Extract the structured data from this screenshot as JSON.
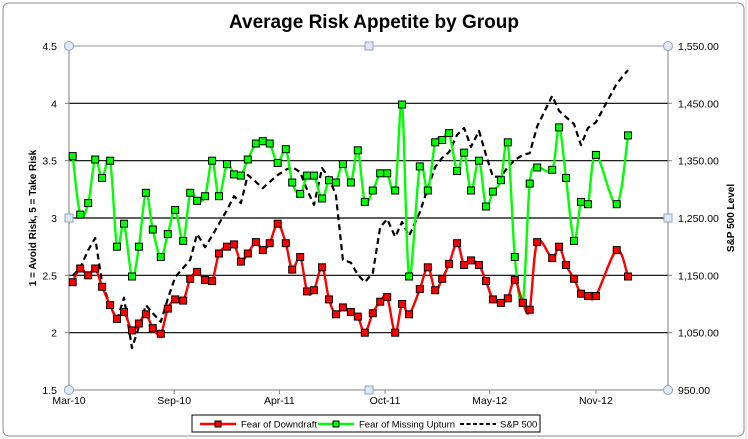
{
  "chart_data": {
    "type": "line",
    "title": "Average Risk Appetite by Group",
    "ylabel": "1 = Avoid Risk, 5 = Take Risk",
    "y2label": "S&P 500 Level",
    "ylim": [
      1.5,
      4.5
    ],
    "y2lim": [
      950,
      1550
    ],
    "xlim": [
      "2010-03-01",
      "2013-03-27"
    ],
    "y_ticks": [
      "1.5",
      "2",
      "2.5",
      "3",
      "3.5",
      "4",
      "4.5"
    ],
    "y_tick_values": [
      1.5,
      2,
      2.5,
      3,
      3.5,
      4,
      4.5
    ],
    "y2_ticks": [
      "950.00",
      "1,050.00",
      "1,150.00",
      "1,250.00",
      "1,350.00",
      "1,450.00",
      "1,550.00"
    ],
    "y2_tick_values": [
      950,
      1050,
      1150,
      1250,
      1350,
      1450,
      1550
    ],
    "x_ticks": [
      "Mar-10",
      "Sep-10",
      "Apr-11",
      "Oct-11",
      "May-12",
      "Nov-12"
    ],
    "x_tick_dates": [
      "2010-03-01",
      "2010-09-14",
      "2011-03-30",
      "2011-10-14",
      "2012-04-27",
      "2012-11-12"
    ],
    "grid": "horizontal major gridlines",
    "legend_position": "bottom",
    "x": [
      "2010-03-08",
      "2010-03-22",
      "2010-04-06",
      "2010-04-19",
      "2010-05-02",
      "2010-05-17",
      "2010-05-30",
      "2010-06-12",
      "2010-06-27",
      "2010-07-10",
      "2010-07-23",
      "2010-08-05",
      "2010-08-20",
      "2010-09-02",
      "2010-09-16",
      "2010-10-01",
      "2010-10-14",
      "2010-10-27",
      "2010-11-11",
      "2010-11-24",
      "2010-12-07",
      "2010-12-22",
      "2011-01-04",
      "2011-01-17",
      "2011-01-30",
      "2011-02-14",
      "2011-02-27",
      "2011-03-12",
      "2011-03-27",
      "2011-04-11",
      "2011-04-23",
      "2011-05-08",
      "2011-05-21",
      "2011-06-03",
      "2011-06-18",
      "2011-07-01",
      "2011-07-14",
      "2011-07-27",
      "2011-08-11",
      "2011-08-24",
      "2011-09-06",
      "2011-09-21",
      "2011-10-05",
      "2011-10-18",
      "2011-11-02",
      "2011-11-15",
      "2011-11-28",
      "2011-12-18",
      "2012-01-02",
      "2012-01-16",
      "2012-01-29",
      "2012-02-11",
      "2012-02-26",
      "2012-03-10",
      "2012-03-23",
      "2012-04-07",
      "2012-04-20",
      "2012-05-03",
      "2012-05-18",
      "2012-05-31",
      "2012-06-13",
      "2012-06-28",
      "2012-07-11",
      "2012-07-25",
      "2012-08-22",
      "2012-09-04",
      "2012-09-17",
      "2012-10-02",
      "2012-10-15",
      "2012-10-28",
      "2012-11-12",
      "2012-12-21",
      "2013-01-11"
    ],
    "series": [
      {
        "name": "Fear of Downdraft",
        "axis": "left",
        "color": "#ff0000",
        "marker": "square",
        "smooth": true,
        "values": [
          2.44,
          2.56,
          2.5,
          2.56,
          2.4,
          2.24,
          2.12,
          2.18,
          2.02,
          2.08,
          2.16,
          2.04,
          1.99,
          2.21,
          2.29,
          2.28,
          2.47,
          2.53,
          2.46,
          2.45,
          2.69,
          2.75,
          2.77,
          2.62,
          2.69,
          2.79,
          2.72,
          2.78,
          2.95,
          2.78,
          2.55,
          2.66,
          2.36,
          2.37,
          2.57,
          2.29,
          2.16,
          2.22,
          2.18,
          2.14,
          2.0,
          2.17,
          2.27,
          2.31,
          2.0,
          2.25,
          2.16,
          2.38,
          2.57,
          2.37,
          2.47,
          2.6,
          2.78,
          2.59,
          2.63,
          2.59,
          2.45,
          2.29,
          2.26,
          2.3,
          2.46,
          2.26,
          2.2,
          2.79,
          2.65,
          2.75,
          2.59,
          2.47,
          2.34,
          2.32,
          2.32,
          2.72,
          2.49
        ]
      },
      {
        "name": "Fear of Missing Upturn",
        "axis": "left",
        "color": "#00ff00",
        "marker": "square",
        "smooth": true,
        "values": [
          3.54,
          3.03,
          3.13,
          3.51,
          3.35,
          3.5,
          2.75,
          2.95,
          2.49,
          2.75,
          3.22,
          2.9,
          2.66,
          2.86,
          3.07,
          2.8,
          3.22,
          3.15,
          3.19,
          3.5,
          3.19,
          3.47,
          3.38,
          3.37,
          3.51,
          3.65,
          3.67,
          3.65,
          3.48,
          3.6,
          3.31,
          3.21,
          3.37,
          3.37,
          3.17,
          3.33,
          3.31,
          3.47,
          3.31,
          3.59,
          3.14,
          3.24,
          3.39,
          3.39,
          3.24,
          3.99,
          2.49,
          3.45,
          3.24,
          3.66,
          3.68,
          3.74,
          3.41,
          3.57,
          3.24,
          3.5,
          3.1,
          3.23,
          3.33,
          3.66,
          2.66,
          2.26,
          3.3,
          3.44,
          3.42,
          3.79,
          3.35,
          2.8,
          3.14,
          3.12,
          3.55,
          3.12,
          3.72
        ]
      },
      {
        "name": "S&P 500",
        "axis": "right",
        "color": "#000000",
        "marker": "none",
        "dashed": true,
        "values": [
          1149,
          1163,
          1194,
          1215,
          1137,
          1098,
          1072,
          1111,
          1023,
          1060,
          1098,
          1084,
          1069,
          1109,
          1147,
          1163,
          1177,
          1222,
          1199,
          1219,
          1240,
          1264,
          1288,
          1276,
          1325,
          1313,
          1302,
          1313,
          1325,
          1334,
          1339,
          1330,
          1299,
          1273,
          1337,
          1320,
          1290,
          1177,
          1172,
          1151,
          1138,
          1154,
          1234,
          1248,
          1217,
          1243,
          1219,
          1260,
          1302,
          1339,
          1355,
          1365,
          1395,
          1407,
          1374,
          1402,
          1360,
          1322,
          1322,
          1339,
          1351,
          1360,
          1363,
          1410,
          1463,
          1437,
          1426,
          1414,
          1377,
          1407,
          1417,
          1484,
          1508
        ]
      }
    ]
  }
}
